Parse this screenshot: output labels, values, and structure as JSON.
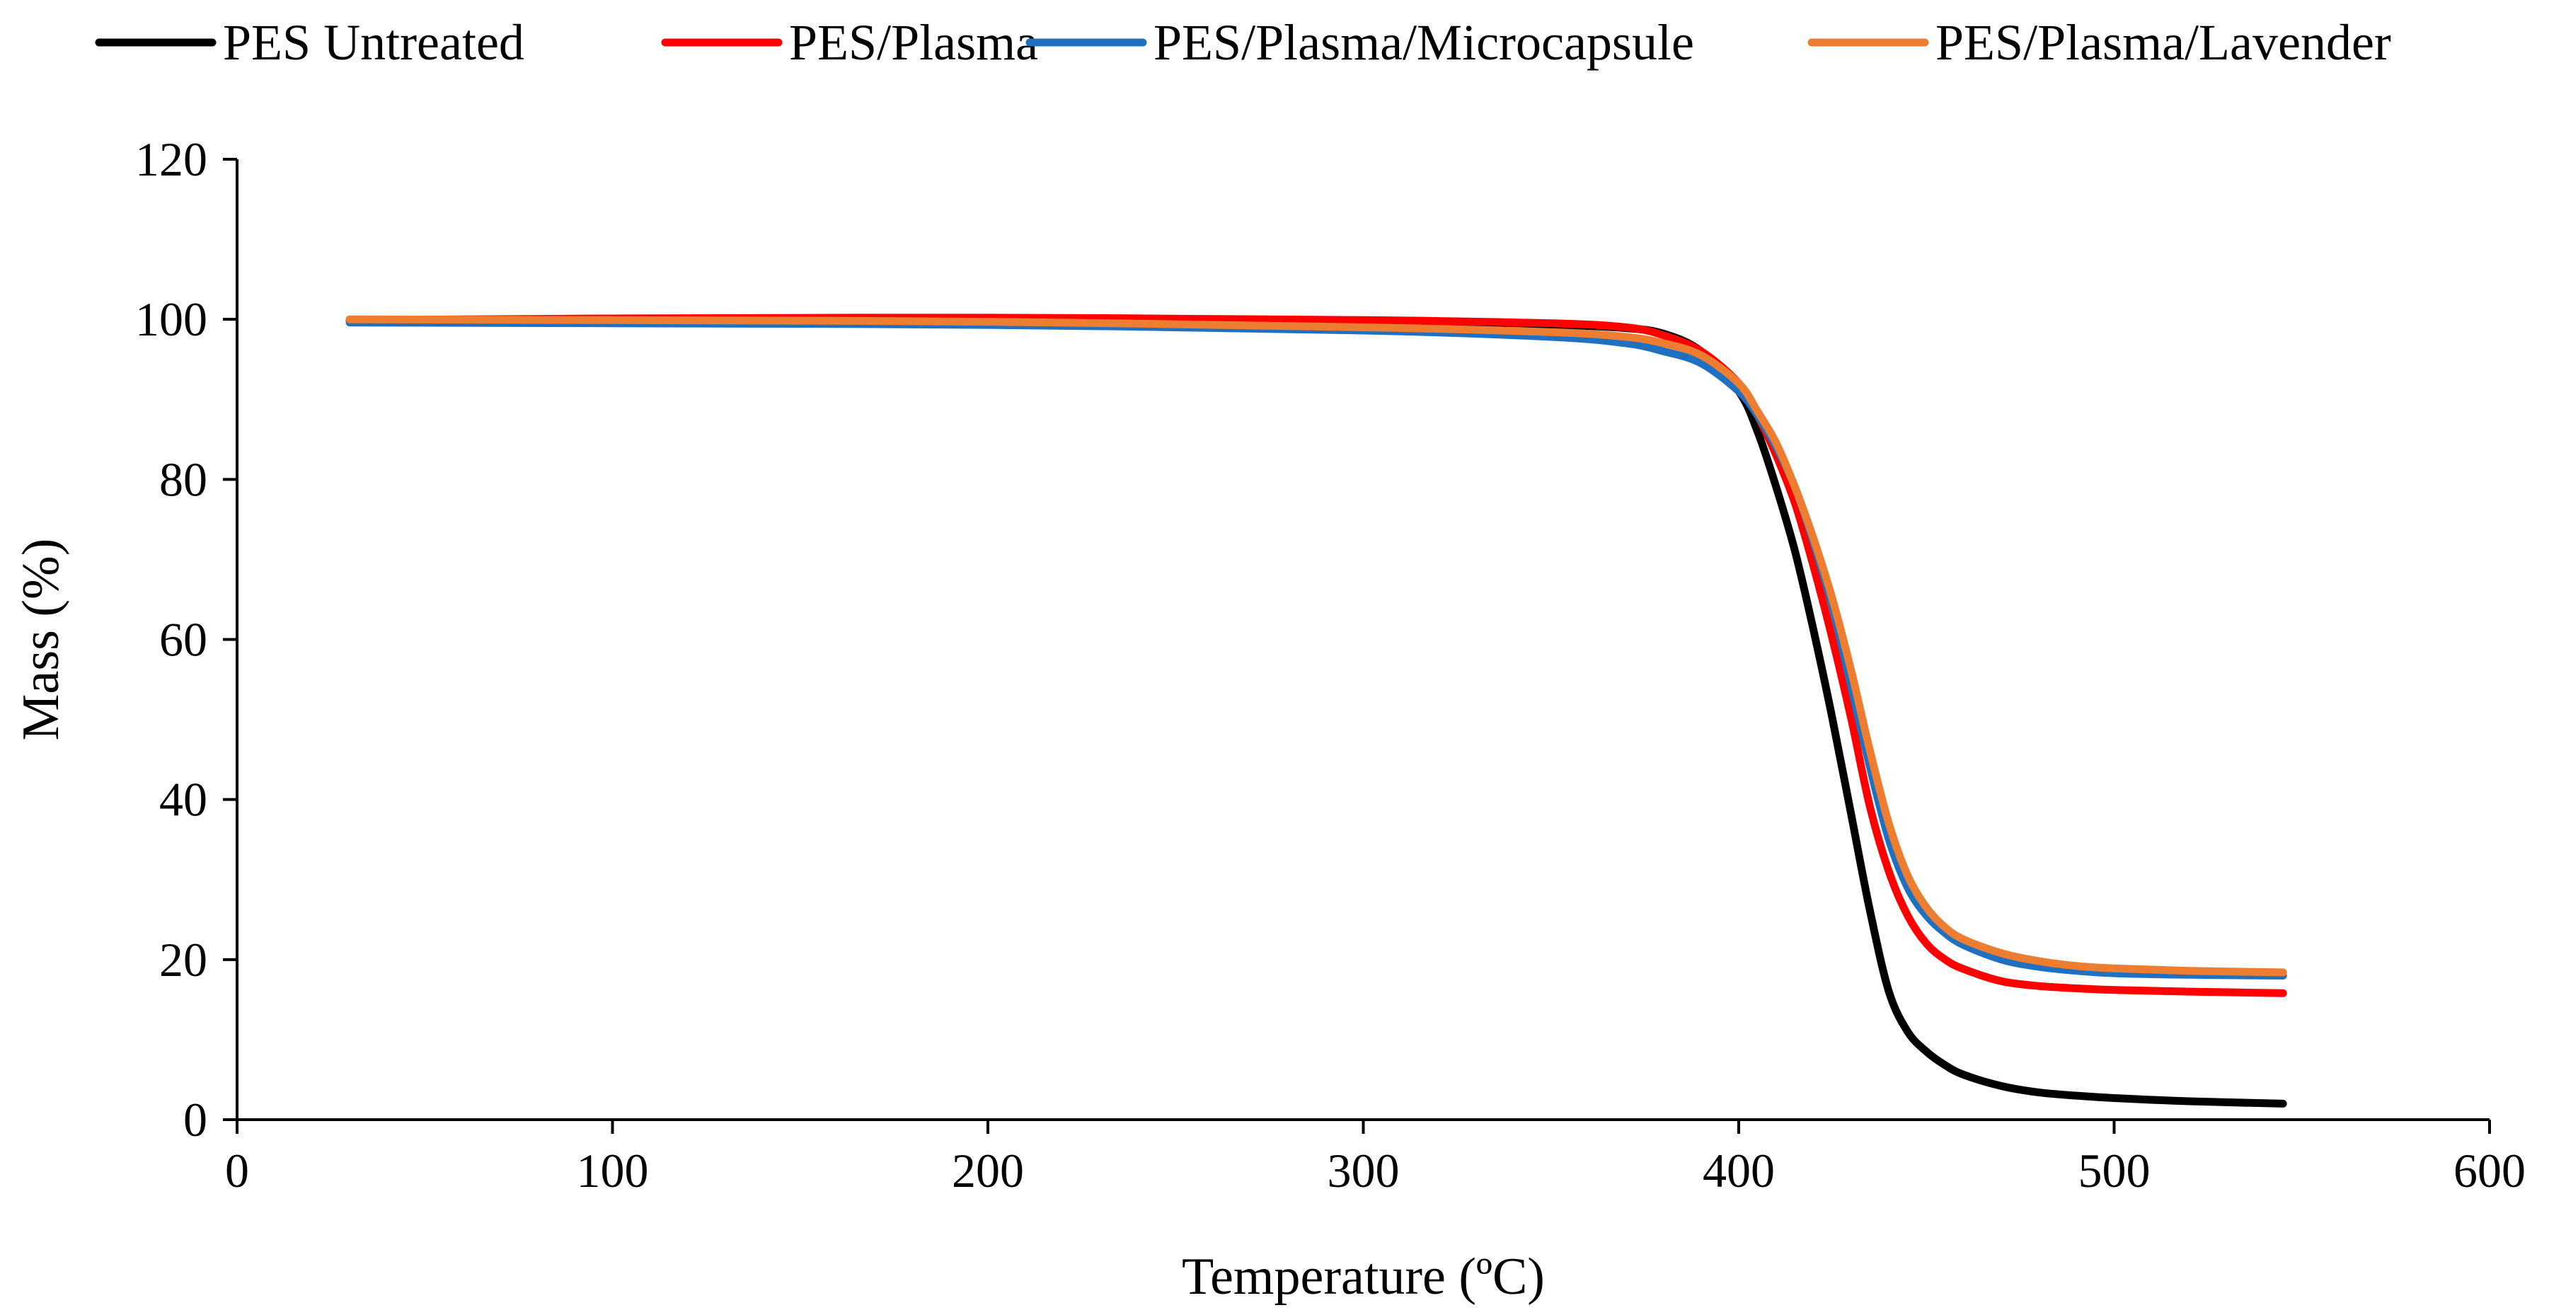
{
  "chart_data": {
    "type": "line",
    "title": "",
    "xlabel": "Temperature (ºC)",
    "ylabel": "Mass (%)",
    "xlim": [
      0,
      600
    ],
    "ylim": [
      0,
      120
    ],
    "xticks": [
      0,
      100,
      200,
      300,
      400,
      500,
      600
    ],
    "yticks": [
      0,
      20,
      40,
      60,
      80,
      100,
      120
    ],
    "grid": false,
    "legend_position": "top",
    "series": [
      {
        "name": "PES Untreated",
        "color": "#000000",
        "x": [
          30,
          100,
          200,
          300,
          350,
          370,
          380,
          390,
          400,
          405,
          410,
          415,
          420,
          425,
          430,
          435,
          440,
          445,
          450,
          455,
          460,
          470,
          480,
          490,
          500,
          520,
          545
        ],
        "y": [
          99.8,
          99.9,
          99.9,
          99.7,
          99.3,
          98.9,
          98.2,
          96,
          91,
          86,
          79,
          71,
          61,
          50,
          38,
          26,
          16,
          11,
          8.5,
          6.8,
          5.6,
          4.2,
          3.4,
          3.0,
          2.7,
          2.3,
          2.0
        ]
      },
      {
        "name": "PES/Plasma",
        "color": "#ff0000",
        "x": [
          30,
          100,
          200,
          300,
          350,
          370,
          380,
          390,
          400,
          405,
          410,
          415,
          420,
          425,
          430,
          435,
          440,
          445,
          450,
          455,
          460,
          470,
          480,
          490,
          500,
          520,
          545
        ],
        "y": [
          99.9,
          100.1,
          100.2,
          99.9,
          99.5,
          99.0,
          98.0,
          96.0,
          92.0,
          88,
          83,
          77,
          69,
          60,
          50,
          39,
          31,
          25.5,
          22.0,
          20.0,
          18.8,
          17.3,
          16.7,
          16.4,
          16.2,
          16.0,
          15.8
        ]
      },
      {
        "name": "PES/Plasma/Microcapsule",
        "color": "#1f70c1",
        "x": [
          30,
          100,
          200,
          300,
          350,
          370,
          380,
          390,
          400,
          405,
          410,
          415,
          420,
          425,
          430,
          435,
          440,
          445,
          450,
          455,
          460,
          470,
          480,
          490,
          500,
          520,
          545
        ],
        "y": [
          99.6,
          99.5,
          99.3,
          98.6,
          97.8,
          97.0,
          96.0,
          94.5,
          91.0,
          88,
          84,
          79,
          72,
          64,
          54,
          44,
          35,
          29,
          25.5,
          23.3,
          21.8,
          20.0,
          19.1,
          18.6,
          18.3,
          18.1,
          18.0
        ]
      },
      {
        "name": "PES/Plasma/Lavender",
        "color": "#ed7d31",
        "x": [
          30,
          100,
          200,
          300,
          350,
          370,
          380,
          390,
          400,
          405,
          410,
          415,
          420,
          425,
          430,
          435,
          440,
          445,
          450,
          455,
          460,
          470,
          480,
          490,
          500,
          520,
          545
        ],
        "y": [
          100.0,
          99.9,
          99.7,
          99.0,
          98.4,
          97.8,
          97.0,
          95.5,
          92.0,
          88.5,
          84.5,
          79,
          72.5,
          65,
          56,
          46,
          37,
          30.5,
          26.5,
          24.0,
          22.5,
          20.8,
          19.8,
          19.2,
          18.9,
          18.6,
          18.4
        ]
      }
    ]
  }
}
